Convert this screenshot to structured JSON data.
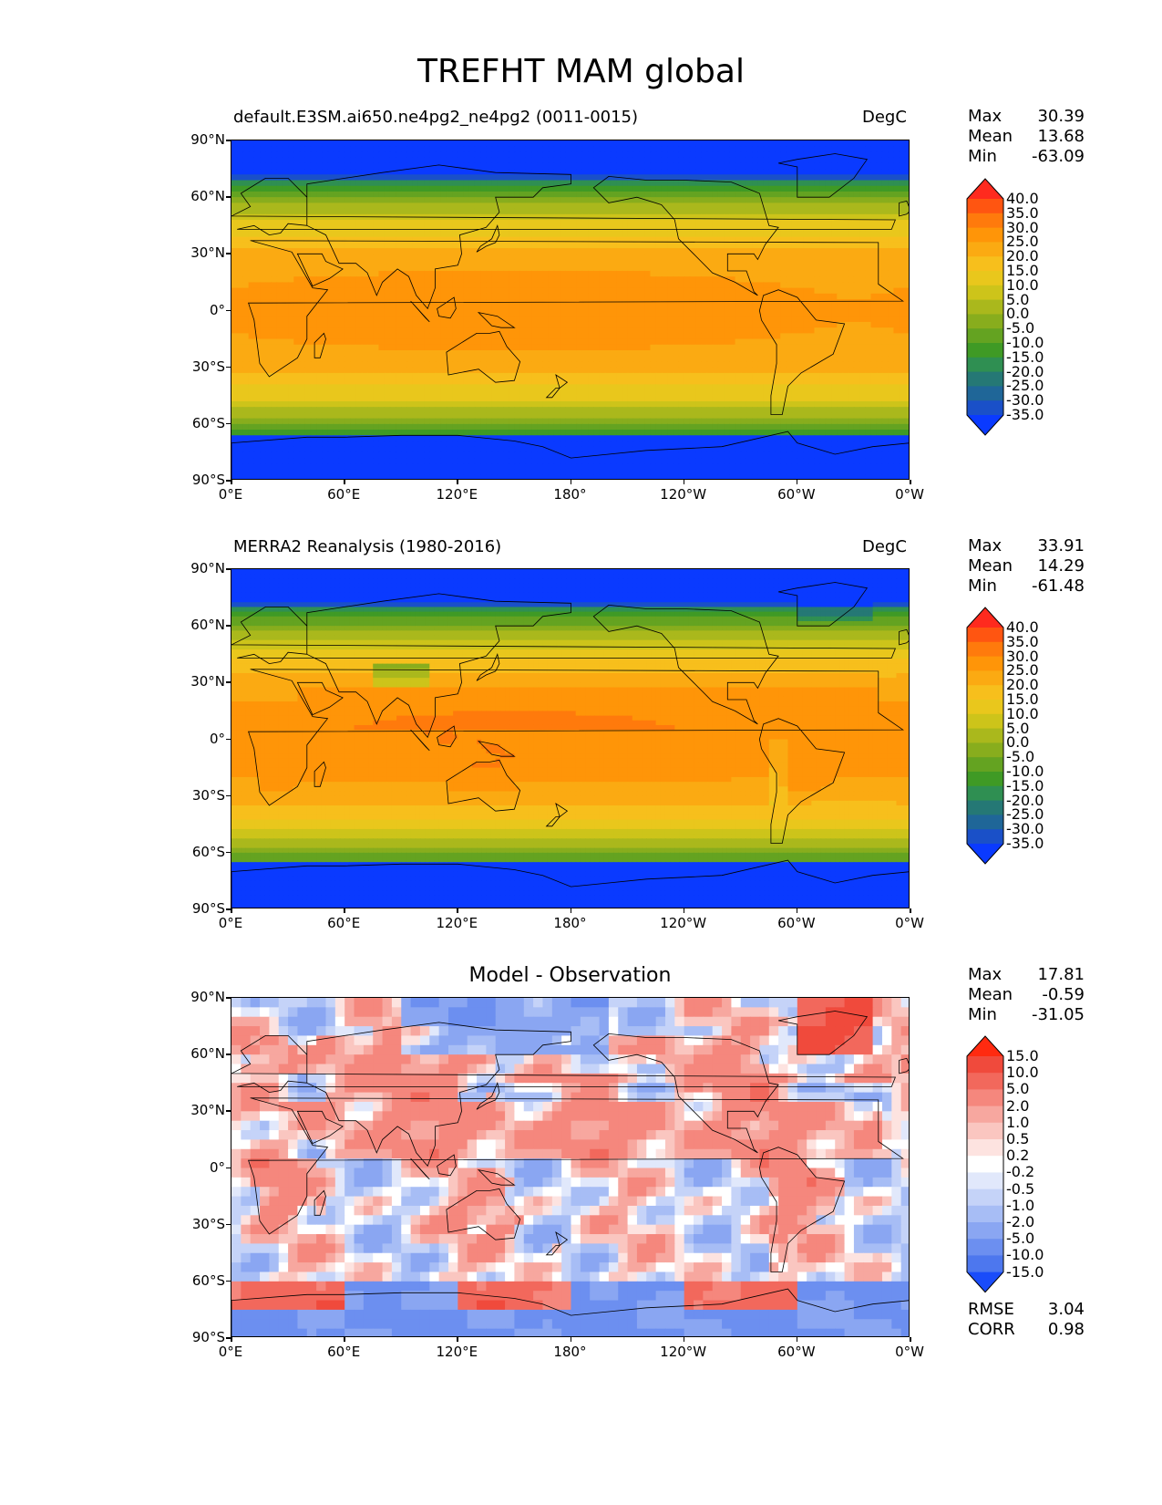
{
  "figure": {
    "title": "TREFHT MAM global"
  },
  "axes": {
    "lat_ticks": [
      "90°N",
      "60°N",
      "30°N",
      "0°",
      "30°S",
      "60°S",
      "90°S"
    ],
    "lon_ticks": [
      "0°E",
      "60°E",
      "120°E",
      "180°",
      "120°W",
      "60°W",
      "0°W"
    ]
  },
  "panels": [
    {
      "id": "model",
      "label_left": "default.E3SM.ai650.ne4pg2_ne4pg2 (0011-0015)",
      "label_right": "DegC",
      "label_center": "",
      "stats": [
        {
          "name": "Max",
          "value": "30.39"
        },
        {
          "name": "Mean",
          "value": "13.68"
        },
        {
          "name": "Min",
          "value": "-63.09"
        }
      ],
      "colorbar": {
        "labels": [
          "40.0",
          "35.0",
          "30.0",
          "25.0",
          "20.0",
          "15.0",
          "10.0",
          "5.0",
          "0.0",
          "-5.0",
          "-10.0",
          "-15.0",
          "-20.0",
          "-25.0",
          "-30.0",
          "-35.0"
        ],
        "colors": [
          "#ff2a1e",
          "#ff5511",
          "#ff7a0c",
          "#ff9508",
          "#fbaa12",
          "#f7bf1c",
          "#e9c71c",
          "#cdc41a",
          "#aab81c",
          "#88ad1d",
          "#64a321",
          "#3f9a25",
          "#2f8f52",
          "#257875",
          "#1f6698",
          "#1a50c8",
          "#0a3aff"
        ]
      }
    },
    {
      "id": "obs",
      "label_left": "MERRA2 Reanalysis (1980-2016)",
      "label_right": "DegC",
      "label_center": "",
      "stats": [
        {
          "name": "Max",
          "value": "33.91"
        },
        {
          "name": "Mean",
          "value": "14.29"
        },
        {
          "name": "Min",
          "value": "-61.48"
        }
      ],
      "colorbar": {
        "labels": [
          "40.0",
          "35.0",
          "30.0",
          "25.0",
          "20.0",
          "15.0",
          "10.0",
          "5.0",
          "0.0",
          "-5.0",
          "-10.0",
          "-15.0",
          "-20.0",
          "-25.0",
          "-30.0",
          "-35.0"
        ],
        "colors": [
          "#ff2a1e",
          "#ff5511",
          "#ff7a0c",
          "#ff9508",
          "#fbaa12",
          "#f7bf1c",
          "#e9c71c",
          "#cdc41a",
          "#aab81c",
          "#88ad1d",
          "#64a321",
          "#3f9a25",
          "#2f8f52",
          "#257875",
          "#1f6698",
          "#1a50c8",
          "#0a3aff"
        ]
      }
    },
    {
      "id": "diff",
      "label_left": "",
      "label_right": "",
      "label_center": "Model - Observation",
      "stats": [
        {
          "name": "Max",
          "value": "17.81"
        },
        {
          "name": "Mean",
          "value": "-0.59"
        },
        {
          "name": "Min",
          "value": "-31.05"
        }
      ],
      "extra_stats": [
        {
          "name": "RMSE",
          "value": "3.04"
        },
        {
          "name": "CORR",
          "value": "0.98"
        }
      ],
      "colorbar": {
        "labels": [
          "15.0",
          "10.0",
          "5.0",
          "2.0",
          "1.0",
          "0.5",
          "0.2",
          "-0.2",
          "-0.5",
          "-1.0",
          "-2.0",
          "-5.0",
          "-10.0",
          "-15.0"
        ],
        "colors": [
          "#ff2a10",
          "#f04a3c",
          "#f2685c",
          "#f5877d",
          "#f7a79f",
          "#fac6c0",
          "#fde3e0",
          "#ffffff",
          "#e1e8fb",
          "#c5d3f8",
          "#a7bdf5",
          "#8aa6f2",
          "#6c8ff0",
          "#4d77ee",
          "#1a4cfa"
        ]
      }
    }
  ]
}
